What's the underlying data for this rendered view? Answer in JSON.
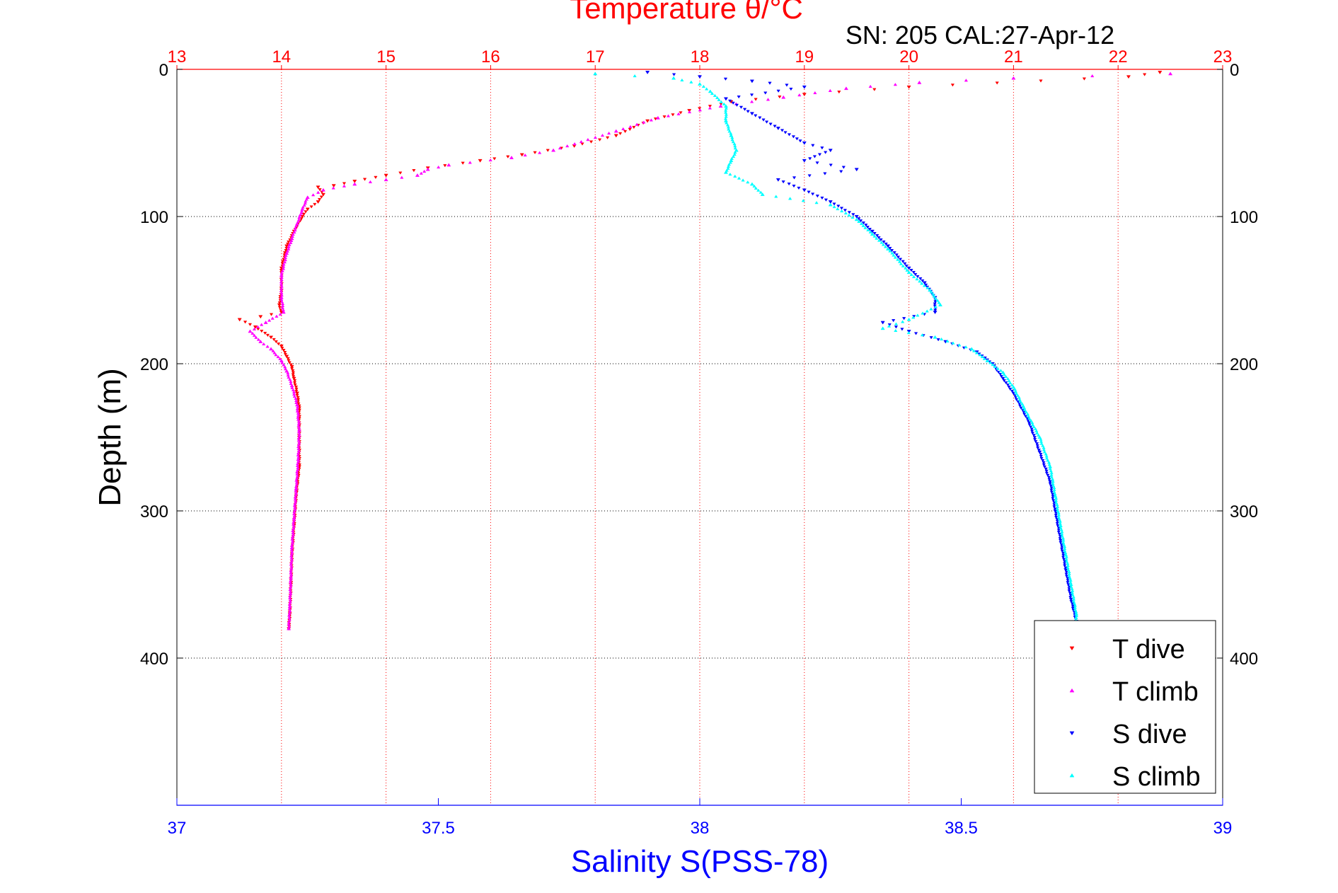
{
  "chart_data": {
    "type": "scatter",
    "title": "Temperature θ/°C",
    "subtitle": "SN: 205  CAL:27-Apr-12",
    "xlabel": "Salinity S(PSS-78)",
    "x2label": "Temperature θ/°C",
    "ylabel": "Depth (m)",
    "xlim_salinity": [
      37,
      39
    ],
    "xlim_temperature": [
      13,
      23
    ],
    "ylim": [
      0,
      500
    ],
    "y_reversed": true,
    "salinity_ticks": [
      "37",
      "37.5",
      "38",
      "38.5",
      "39"
    ],
    "temperature_ticks": [
      "13",
      "14",
      "15",
      "16",
      "17",
      "18",
      "19",
      "20",
      "21",
      "22",
      "23"
    ],
    "depth_ticks": [
      "0",
      "100",
      "200",
      "300",
      "400"
    ],
    "grid": true,
    "legend_position": "bottom-right",
    "colors": {
      "temperature_axis": "#ff0000",
      "salinity_axis": "#0000ff",
      "T_dive": "#ff0000",
      "T_climb": "#ff00ff",
      "S_dive": "#0000ff",
      "S_climb": "#00ffff"
    },
    "series": [
      {
        "name": "T dive",
        "axis": "temperature",
        "marker": "triangle-down",
        "points": [
          [
            22.4,
            2
          ],
          [
            22.1,
            5
          ],
          [
            20.0,
            12
          ],
          [
            19.0,
            17
          ],
          [
            18.3,
            22
          ],
          [
            17.9,
            28
          ],
          [
            17.5,
            35
          ],
          [
            17.2,
            45
          ],
          [
            16.8,
            52
          ],
          [
            16.3,
            58
          ],
          [
            15.9,
            62
          ],
          [
            15.4,
            67
          ],
          [
            15.0,
            72
          ],
          [
            14.7,
            76
          ],
          [
            14.5,
            79
          ],
          [
            14.35,
            80
          ],
          [
            14.4,
            85
          ],
          [
            14.35,
            90
          ],
          [
            14.25,
            95
          ],
          [
            14.2,
            100
          ],
          [
            14.12,
            110
          ],
          [
            14.05,
            120
          ],
          [
            14.0,
            135
          ],
          [
            14.0,
            150
          ],
          [
            13.98,
            160
          ],
          [
            14.0,
            165
          ],
          [
            13.8,
            168
          ],
          [
            13.6,
            170
          ],
          [
            13.75,
            175
          ],
          [
            13.9,
            182
          ],
          [
            14.0,
            188
          ],
          [
            14.05,
            195
          ],
          [
            14.1,
            202
          ],
          [
            14.12,
            210
          ],
          [
            14.15,
            220
          ],
          [
            14.17,
            230
          ],
          [
            14.17,
            250
          ],
          [
            14.17,
            270
          ],
          [
            14.14,
            290
          ],
          [
            14.12,
            310
          ],
          [
            14.1,
            330
          ],
          [
            14.09,
            350
          ],
          [
            14.08,
            370
          ],
          [
            14.07,
            380
          ]
        ]
      },
      {
        "name": "T climb",
        "axis": "temperature",
        "marker": "triangle-up",
        "points": [
          [
            22.5,
            3
          ],
          [
            21.0,
            6
          ],
          [
            20.1,
            9
          ],
          [
            19.4,
            13
          ],
          [
            18.8,
            19
          ],
          [
            18.2,
            25
          ],
          [
            17.6,
            33
          ],
          [
            17.2,
            42
          ],
          [
            16.6,
            55
          ],
          [
            16.2,
            60
          ],
          [
            15.6,
            65
          ],
          [
            15.4,
            68
          ],
          [
            15.3,
            72
          ],
          [
            15.0,
            75
          ],
          [
            14.7,
            78
          ],
          [
            14.4,
            82
          ],
          [
            14.25,
            87
          ],
          [
            14.2,
            95
          ],
          [
            14.15,
            105
          ],
          [
            14.1,
            115
          ],
          [
            14.05,
            125
          ],
          [
            14.0,
            140
          ],
          [
            14.0,
            155
          ],
          [
            14.02,
            165
          ],
          [
            13.85,
            172
          ],
          [
            13.7,
            178
          ],
          [
            13.8,
            185
          ],
          [
            13.9,
            190
          ],
          [
            14.0,
            198
          ],
          [
            14.05,
            205
          ],
          [
            14.1,
            215
          ],
          [
            14.15,
            228
          ],
          [
            14.17,
            245
          ],
          [
            14.16,
            265
          ],
          [
            14.14,
            285
          ],
          [
            14.12,
            305
          ],
          [
            14.1,
            325
          ],
          [
            14.09,
            345
          ],
          [
            14.08,
            365
          ],
          [
            14.07,
            380
          ]
        ]
      },
      {
        "name": "S dive",
        "axis": "salinity",
        "marker": "triangle-down",
        "points": [
          [
            37.9,
            2
          ],
          [
            38.0,
            5
          ],
          [
            38.1,
            8
          ],
          [
            38.2,
            12
          ],
          [
            38.05,
            20
          ],
          [
            38.1,
            30
          ],
          [
            38.15,
            40
          ],
          [
            38.2,
            50
          ],
          [
            38.25,
            55
          ],
          [
            38.2,
            62
          ],
          [
            38.3,
            68
          ],
          [
            38.15,
            75
          ],
          [
            38.2,
            82
          ],
          [
            38.25,
            90
          ],
          [
            38.3,
            100
          ],
          [
            38.33,
            110
          ],
          [
            38.36,
            120
          ],
          [
            38.4,
            135
          ],
          [
            38.43,
            145
          ],
          [
            38.45,
            155
          ],
          [
            38.45,
            165
          ],
          [
            38.35,
            172
          ],
          [
            38.4,
            178
          ],
          [
            38.47,
            185
          ],
          [
            38.53,
            192
          ],
          [
            38.56,
            200
          ],
          [
            38.58,
            210
          ],
          [
            38.6,
            220
          ],
          [
            38.63,
            240
          ],
          [
            38.65,
            260
          ],
          [
            38.67,
            280
          ],
          [
            38.68,
            300
          ],
          [
            38.69,
            320
          ],
          [
            38.7,
            340
          ],
          [
            38.71,
            360
          ],
          [
            38.72,
            375
          ]
        ]
      },
      {
        "name": "S climb",
        "axis": "salinity",
        "marker": "triangle-up",
        "points": [
          [
            37.8,
            3
          ],
          [
            37.95,
            6
          ],
          [
            38.0,
            10
          ],
          [
            38.02,
            15
          ],
          [
            38.05,
            25
          ],
          [
            38.05,
            35
          ],
          [
            38.06,
            45
          ],
          [
            38.07,
            55
          ],
          [
            38.06,
            62
          ],
          [
            38.05,
            70
          ],
          [
            38.1,
            78
          ],
          [
            38.12,
            85
          ],
          [
            38.25,
            92
          ],
          [
            38.3,
            102
          ],
          [
            38.33,
            112
          ],
          [
            38.36,
            122
          ],
          [
            38.4,
            138
          ],
          [
            38.44,
            150
          ],
          [
            38.46,
            160
          ],
          [
            38.4,
            170
          ],
          [
            38.35,
            176
          ],
          [
            38.45,
            182
          ],
          [
            38.52,
            190
          ],
          [
            38.55,
            198
          ],
          [
            38.58,
            206
          ],
          [
            38.6,
            216
          ],
          [
            38.62,
            230
          ],
          [
            38.65,
            250
          ],
          [
            38.67,
            270
          ],
          [
            38.68,
            290
          ],
          [
            38.69,
            310
          ],
          [
            38.7,
            330
          ],
          [
            38.71,
            350
          ],
          [
            38.72,
            370
          ],
          [
            38.72,
            378
          ]
        ]
      }
    ]
  }
}
